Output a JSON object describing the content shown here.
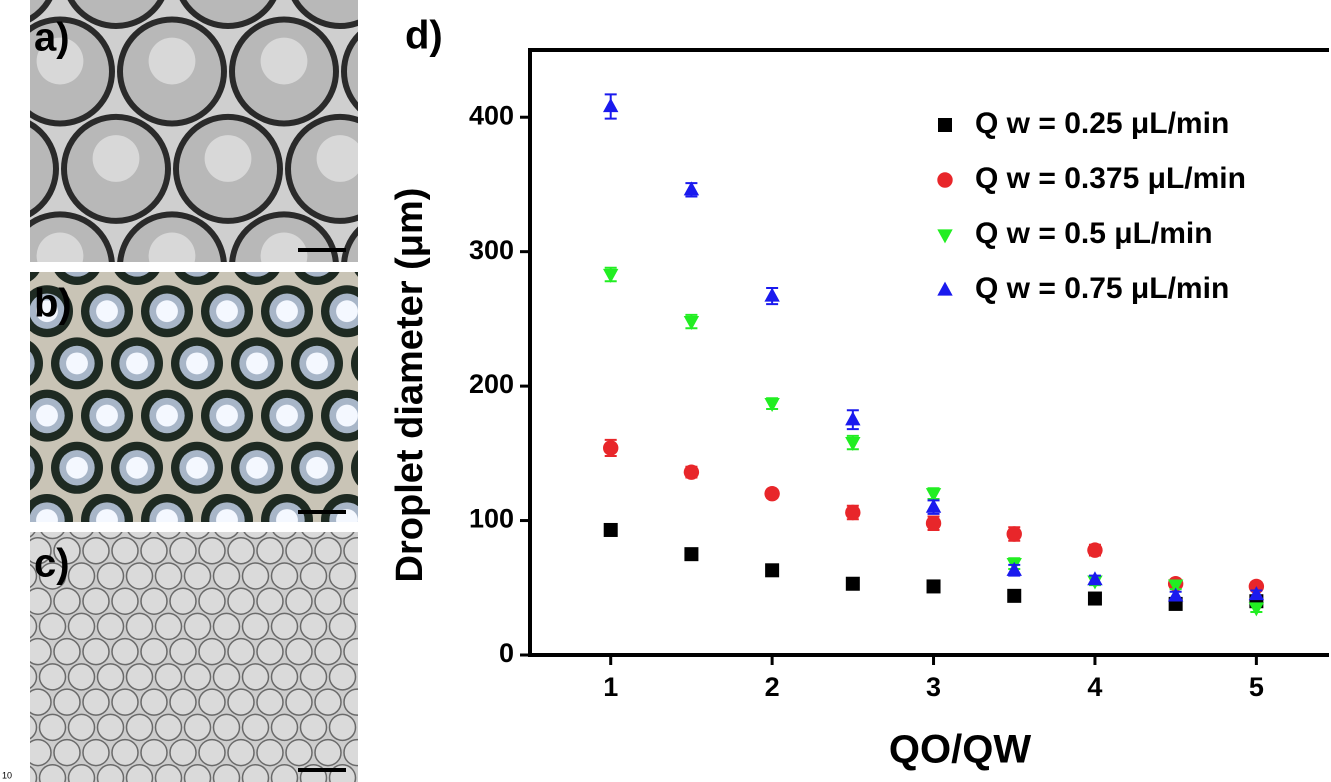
{
  "panels": [
    "a)",
    "b)",
    "c)"
  ],
  "page_number": "10",
  "chart_data": {
    "type": "scatter",
    "panel_label": "d)",
    "x_label": "QO/QW",
    "y_label": "Droplet diameter (μm)",
    "xlim": [
      0.5,
      5.45
    ],
    "ylim": [
      0,
      450
    ],
    "xticks": [
      1,
      2,
      3,
      4,
      5
    ],
    "yticks": [
      0,
      100,
      200,
      300,
      400
    ],
    "x": [
      1,
      1.5,
      2,
      2.5,
      3,
      3.5,
      4,
      4.5,
      5
    ],
    "legend": "upper right",
    "series": [
      {
        "name": "Q w = 0.25 μL/min",
        "color": "#000000",
        "marker": "square",
        "values": [
          93,
          75,
          63,
          53,
          51,
          44,
          42,
          38,
          40
        ],
        "errors": [
          4,
          3,
          3,
          3,
          3,
          3,
          3,
          3,
          3
        ]
      },
      {
        "name": "Q w = 0.375 μL/min",
        "color": "#e8262a",
        "marker": "circle",
        "values": [
          154,
          136,
          120,
          106,
          98,
          90,
          78,
          53,
          51
        ],
        "errors": [
          6,
          4,
          3,
          5,
          5,
          5,
          4,
          3,
          3
        ]
      },
      {
        "name": "Q w = 0.5 μL/min",
        "color": "#22ee22",
        "marker": "triangle-down",
        "values": [
          283,
          248,
          187,
          158,
          120,
          68,
          55,
          52,
          35
        ],
        "errors": [
          5,
          5,
          4,
          5,
          4,
          4,
          3,
          3,
          3
        ]
      },
      {
        "name": "Q w = 0.75 μL/min",
        "color": "#1a1aee",
        "marker": "triangle-up",
        "values": [
          408,
          346,
          267,
          175,
          110,
          63,
          56,
          44,
          45
        ],
        "errors": [
          9,
          5,
          6,
          7,
          5,
          4,
          3,
          3,
          3
        ]
      }
    ]
  }
}
